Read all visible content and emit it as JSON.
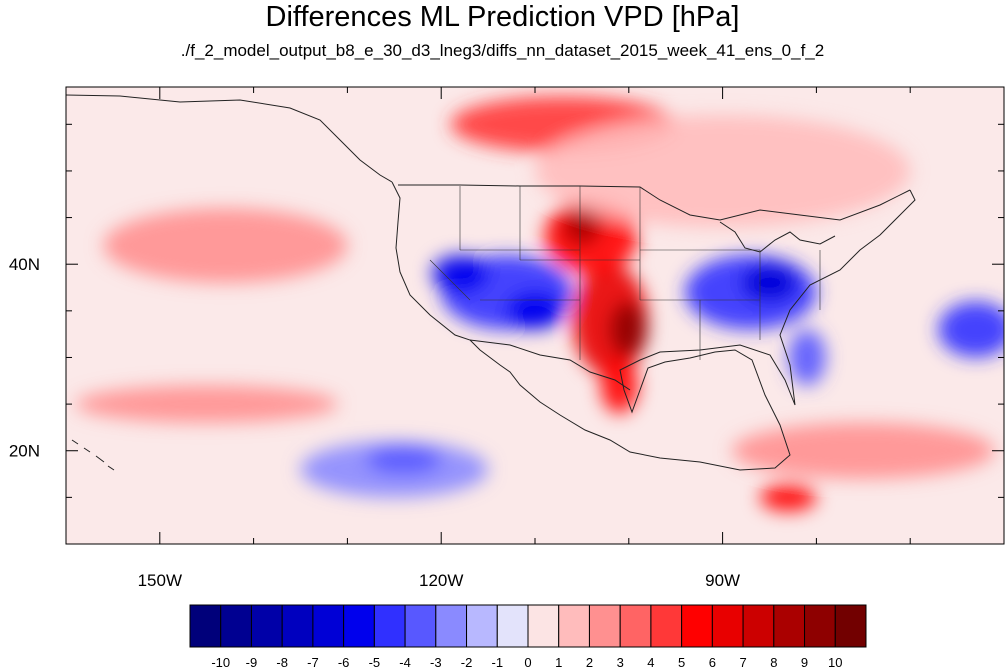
{
  "title": "Differences ML Prediction VPD [hPa]",
  "subtitle": "./f_2_model_output_b8_e_30_d3_lneg3/diffs_nn_dataset_2015_week_41_ens_0_f_2",
  "map": {
    "lon_range": [
      -160,
      -60
    ],
    "lat_range": [
      10,
      59
    ],
    "x_ticks": [
      {
        "lon": -150,
        "label": "150W"
      },
      {
        "lon": -120,
        "label": "120W"
      },
      {
        "lon": -90,
        "label": "90W"
      }
    ],
    "y_ticks": [
      {
        "lat": 20,
        "label": "20N"
      },
      {
        "lat": 40,
        "label": "40N"
      }
    ],
    "field_blobs": [
      {
        "lon": -113,
        "lat": 37,
        "rlon": 7,
        "rlat": 4,
        "value": -5
      },
      {
        "lon": -118,
        "lat": 39,
        "rlon": 3,
        "rlat": 2,
        "value": -6
      },
      {
        "lon": -110,
        "lat": 35,
        "rlon": 3,
        "rlat": 2,
        "value": -6
      },
      {
        "lon": -87,
        "lat": 37,
        "rlon": 7,
        "rlat": 4,
        "value": -5
      },
      {
        "lon": -85,
        "lat": 38,
        "rlon": 3,
        "rlat": 2,
        "value": -7
      },
      {
        "lon": -81,
        "lat": 30,
        "rlon": 2,
        "rlat": 3,
        "value": -4
      },
      {
        "lon": -63,
        "lat": 33,
        "rlon": 4,
        "rlat": 3,
        "value": -5
      },
      {
        "lon": -125,
        "lat": 18,
        "rlon": 10,
        "rlat": 3,
        "value": -3
      },
      {
        "lon": -124,
        "lat": 19,
        "rlon": 4,
        "rlat": 1.5,
        "value": -4
      },
      {
        "lon": -102,
        "lat": 34,
        "rlon": 4,
        "rlat": 6,
        "value": 6
      },
      {
        "lon": -100,
        "lat": 33,
        "rlon": 2,
        "rlat": 3,
        "value": 9
      },
      {
        "lon": -104,
        "lat": 43,
        "rlon": 5,
        "rlat": 4,
        "value": 5
      },
      {
        "lon": -105,
        "lat": 44,
        "rlon": 2,
        "rlat": 2,
        "value": 8
      },
      {
        "lon": -101,
        "lat": 27,
        "rlon": 2,
        "rlat": 3,
        "value": 5
      },
      {
        "lon": -107,
        "lat": 55,
        "rlon": 12,
        "rlat": 3,
        "value": 4
      },
      {
        "lon": -143,
        "lat": 42,
        "rlon": 13,
        "rlat": 4,
        "value": 2
      },
      {
        "lon": -145,
        "lat": 25,
        "rlon": 14,
        "rlat": 2,
        "value": 2
      },
      {
        "lon": -75,
        "lat": 20,
        "rlon": 14,
        "rlat": 3,
        "value": 2
      },
      {
        "lon": -90,
        "lat": 50,
        "rlon": 20,
        "rlat": 6,
        "value": 1
      },
      {
        "lon": -83,
        "lat": 15,
        "rlon": 3,
        "rlat": 1.5,
        "value": 5
      }
    ]
  },
  "colorbar": {
    "levels": [
      "-10",
      "-9",
      "-8",
      "-7",
      "-6",
      "-5",
      "-4",
      "-3",
      "-2",
      "-1",
      "0",
      "1",
      "2",
      "3",
      "4",
      "5",
      "6",
      "7",
      "8",
      "9",
      "10"
    ],
    "colors": [
      "#00007a",
      "#000091",
      "#0000a8",
      "#0000bf",
      "#0000d6",
      "#0000ed",
      "#3030ff",
      "#5858ff",
      "#8a8aff",
      "#b8b8ff",
      "#e3e3fb",
      "#fce4e4",
      "#ffbcbc",
      "#ff9090",
      "#ff6464",
      "#ff3838",
      "#ff0000",
      "#e80000",
      "#cc0000",
      "#aa0000",
      "#8e0000",
      "#720000"
    ]
  }
}
